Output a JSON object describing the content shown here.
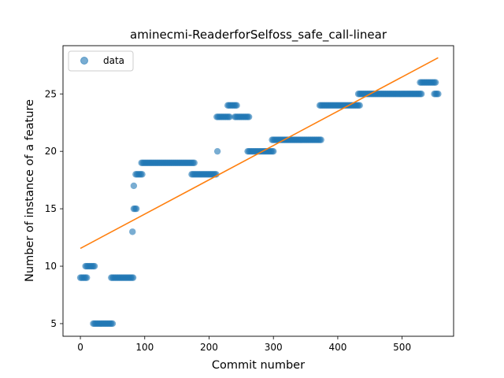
{
  "chart_data": {
    "type": "scatter",
    "title": "aminecmi-ReaderforSelfoss_safe_call-linear",
    "xlabel": "Commit number",
    "ylabel": "Number of instance of a feature",
    "xlim": [
      -27,
      580
    ],
    "ylim": [
      3.9,
      29.2
    ],
    "xticks": [
      0,
      100,
      200,
      300,
      400,
      500
    ],
    "yticks": [
      5,
      10,
      15,
      20,
      25
    ],
    "grid": false,
    "legend": {
      "placement": "top-left",
      "entries": [
        "data"
      ]
    },
    "series": [
      {
        "name": "data",
        "kind": "points",
        "color": "#1f77b4",
        "segments": [
          {
            "x_start": 0,
            "x_end": 10,
            "y": 9
          },
          {
            "x_start": 8,
            "x_end": 22,
            "y": 10
          },
          {
            "x_start": 20,
            "x_end": 50,
            "y": 5
          },
          {
            "x_start": 48,
            "x_end": 82,
            "y": 9
          },
          {
            "x_start": 81,
            "x_end": 81,
            "y": 13
          },
          {
            "x_start": 83,
            "x_end": 83,
            "y": 17
          },
          {
            "x_start": 83,
            "x_end": 87,
            "y": 15
          },
          {
            "x_start": 86,
            "x_end": 96,
            "y": 18
          },
          {
            "x_start": 95,
            "x_end": 177,
            "y": 19
          },
          {
            "x_start": 173,
            "x_end": 212,
            "y": 18
          },
          {
            "x_start": 213,
            "x_end": 213,
            "y": 20
          },
          {
            "x_start": 212,
            "x_end": 232,
            "y": 23
          },
          {
            "x_start": 229,
            "x_end": 243,
            "y": 24
          },
          {
            "x_start": 240,
            "x_end": 263,
            "y": 23
          },
          {
            "x_start": 260,
            "x_end": 300,
            "y": 20
          },
          {
            "x_start": 298,
            "x_end": 374,
            "y": 21
          },
          {
            "x_start": 372,
            "x_end": 435,
            "y": 24
          },
          {
            "x_start": 432,
            "x_end": 530,
            "y": 25
          },
          {
            "x_start": 528,
            "x_end": 552,
            "y": 26
          },
          {
            "x_start": 550,
            "x_end": 556,
            "y": 25
          }
        ]
      },
      {
        "name": "linear fit",
        "kind": "line",
        "color": "#ff7f0e",
        "x": [
          0,
          556
        ],
        "y": [
          11.55,
          28.15
        ]
      }
    ]
  }
}
